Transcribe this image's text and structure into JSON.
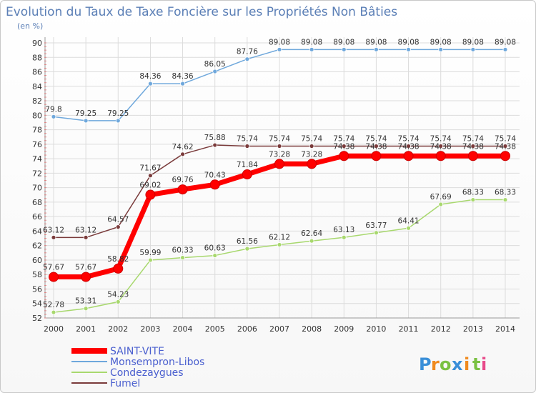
{
  "chart_data": {
    "type": "line",
    "title": "Evolution du Taux de Taxe Foncière sur les Propriétés Non Bâties",
    "subtitle": "(en %)",
    "x": [
      "2000",
      "2001",
      "2002",
      "2003",
      "2004",
      "2005",
      "2006",
      "2007",
      "2008",
      "2009",
      "2010",
      "2011",
      "2012",
      "2013",
      "2014"
    ],
    "ylim": [
      52,
      90
    ],
    "yticks": [
      52,
      54,
      56,
      58,
      60,
      62,
      64,
      66,
      68,
      70,
      72,
      74,
      76,
      78,
      80,
      82,
      84,
      86,
      88,
      90
    ],
    "grid": true,
    "legend_position": "bottom-left",
    "series": [
      {
        "name": "SAINT-VITE",
        "color": "#ff0000",
        "values": [
          57.67,
          57.67,
          58.82,
          69.02,
          69.76,
          70.43,
          71.84,
          73.28,
          73.28,
          74.38,
          74.38,
          74.38,
          74.38,
          74.38,
          74.38
        ],
        "labels": [
          "57.67",
          "57.67",
          "58.82",
          "69.02",
          "69.76",
          "70.43",
          "71.84",
          "73.28",
          "73.28",
          "74.38",
          "74.38",
          "74.38",
          "74.38",
          "74.38",
          "74.38"
        ]
      },
      {
        "name": "Monsempron-Libos",
        "color": "#6fa8dc",
        "values": [
          79.8,
          79.25,
          79.25,
          84.36,
          84.36,
          86.05,
          87.76,
          89.08,
          89.08,
          89.08,
          89.08,
          89.08,
          89.08,
          89.08,
          89.08
        ],
        "labels": [
          "79.8",
          "79.25",
          "79.25",
          "84.36",
          "84.36",
          "86.05",
          "87.76",
          "89.08",
          "89.08",
          "89.08",
          "89.08",
          "89.08",
          "89.08",
          "89.08",
          "89.08"
        ]
      },
      {
        "name": "Condezaygues",
        "color": "#a8d86e",
        "values": [
          52.78,
          53.31,
          54.23,
          59.99,
          60.33,
          60.63,
          61.56,
          62.12,
          62.64,
          63.13,
          63.77,
          64.41,
          67.69,
          68.33,
          68.33
        ],
        "labels": [
          "52.78",
          "53.31",
          "54.23",
          "59.99",
          "60.33",
          "60.63",
          "61.56",
          "62.12",
          "62.64",
          "63.13",
          "63.77",
          "64.41",
          "67.69",
          "68.33",
          "68.33"
        ]
      },
      {
        "name": "Fumel",
        "color": "#7a3b3b",
        "values": [
          63.12,
          63.12,
          64.57,
          71.67,
          74.62,
          75.88,
          75.74,
          75.74,
          75.74,
          75.74,
          75.74,
          75.74,
          75.74,
          75.74,
          75.74
        ],
        "labels": [
          "63.12",
          "63.12",
          "64.57",
          "71.67",
          "74.62",
          "75.88",
          "75.74",
          "75.74",
          "75.74",
          "75.74",
          "75.74",
          "75.74",
          "75.74",
          "75.74",
          "75.74"
        ]
      }
    ]
  },
  "brand": {
    "text": "Proxiti",
    "letters": [
      "P",
      "r",
      "o",
      "x",
      "i",
      "t",
      "i"
    ],
    "colors": [
      "#3a8fd8",
      "#f08a1e",
      "#7ac142",
      "#3a8fd8",
      "#f08a1e",
      "#7ac142",
      "#e84a8a"
    ]
  }
}
